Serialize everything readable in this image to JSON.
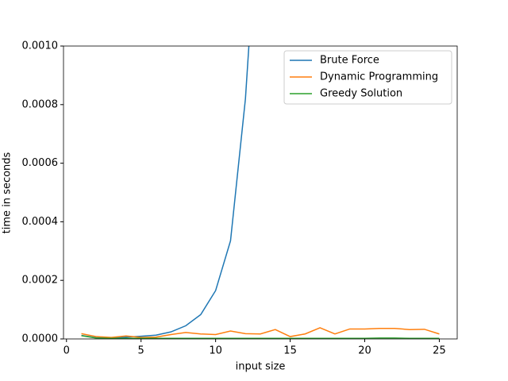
{
  "chart_data": {
    "type": "line",
    "xlabel": "input size",
    "ylabel": "time in seconds",
    "x": [
      1,
      2,
      3,
      4,
      5,
      6,
      7,
      8,
      9,
      10,
      11,
      12,
      13,
      14,
      15,
      16,
      17,
      18,
      19,
      20,
      21,
      22,
      23,
      24,
      25
    ],
    "series": [
      {
        "name": "Brute Force",
        "color": "#1f77b4",
        "values": [
          1.2e-05,
          4e-06,
          4e-06,
          6e-06,
          9e-06,
          1.3e-05,
          2.4e-05,
          4.5e-05,
          8.3e-05,
          0.000165,
          0.000335,
          0.00082,
          0.0016,
          null,
          null,
          null,
          null,
          null,
          null,
          null,
          null,
          null,
          null,
          null,
          null
        ]
      },
      {
        "name": "Dynamic Programming",
        "color": "#ff7f0e",
        "values": [
          1.8e-05,
          8e-06,
          5e-06,
          1e-05,
          5e-06,
          6e-06,
          1.5e-05,
          2.2e-05,
          1.7e-05,
          1.5e-05,
          2.7e-05,
          1.8e-05,
          1.7e-05,
          3.2e-05,
          8e-06,
          1.7e-05,
          3.8e-05,
          1.7e-05,
          3.4e-05,
          3.4e-05,
          3.6e-05,
          3.6e-05,
          3.2e-05,
          3.3e-05,
          1.7e-05
        ]
      },
      {
        "name": "Greedy Solution",
        "color": "#2ca02c",
        "values": [
          1.1e-05,
          3e-06,
          2e-06,
          2e-06,
          2e-06,
          2e-06,
          2e-06,
          2e-06,
          2e-06,
          2e-06,
          2e-06,
          2e-06,
          2e-06,
          2e-06,
          2e-06,
          2e-06,
          2e-06,
          2e-06,
          2e-06,
          2e-06,
          3e-06,
          3e-06,
          2e-06,
          2e-06,
          2e-06
        ]
      }
    ],
    "xlim": [
      -0.2,
      26.2
    ],
    "ylim": [
      0,
      0.001
    ],
    "xticks": [
      0,
      5,
      10,
      15,
      20,
      25
    ],
    "yticks": [
      {
        "value": 0,
        "label": "0.0000"
      },
      {
        "value": 0.0002,
        "label": "0.0002"
      },
      {
        "value": 0.0004,
        "label": "0.0004"
      },
      {
        "value": 0.0006,
        "label": "0.0006"
      },
      {
        "value": 0.0008,
        "label": "0.0008"
      },
      {
        "value": 0.001,
        "label": "0.0010"
      }
    ],
    "legend": "upper right"
  }
}
